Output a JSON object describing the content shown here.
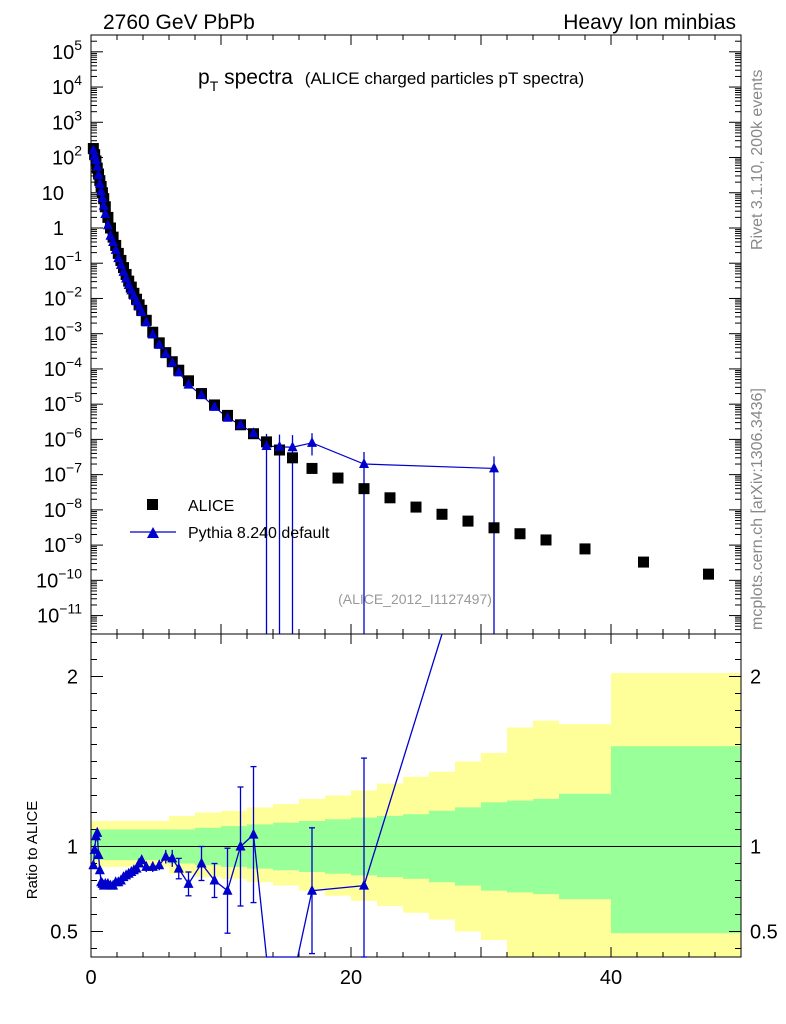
{
  "header": {
    "left": "2760 GeV PbPb",
    "right": "Heavy Ion minbias"
  },
  "plot_title": {
    "main": "p",
    "sub": "T",
    "rest": " spectra",
    "paren": "(ALICE charged particles pT spectra)"
  },
  "side_text": {
    "top": "Rivet 3.1.10,  200k events",
    "bottom": "mcplots.cern.ch [arXiv:1306.3436]"
  },
  "analysis_label": "(ALICE_2012_I1127497)",
  "legend": {
    "data": "ALICE",
    "mc": "Pythia 8.240 default"
  },
  "colors": {
    "data": "#000000",
    "mc": "#0000cc",
    "band_inner": "#99ff99",
    "band_outer": "#ffff99"
  },
  "chart_data": [
    {
      "type": "scatter",
      "yscale": "log",
      "xlim": [
        0,
        50
      ],
      "ylim": [
        3e-12,
        300000.0
      ],
      "y_ticks": [
        {
          "label": "10",
          "sup": "5"
        },
        {
          "label": "10",
          "sup": "4"
        },
        {
          "label": "10",
          "sup": "3"
        },
        {
          "label": "10",
          "sup": "2"
        },
        {
          "label": "10",
          "sup": ""
        },
        {
          "label": "1",
          "sup": ""
        },
        {
          "label": "10",
          "sup": "−1"
        },
        {
          "label": "10",
          "sup": "−2"
        },
        {
          "label": "10",
          "sup": "−3"
        },
        {
          "label": "10",
          "sup": "−4"
        },
        {
          "label": "10",
          "sup": "−5"
        },
        {
          "label": "10",
          "sup": "−6"
        },
        {
          "label": "10",
          "sup": "−7"
        },
        {
          "label": "10",
          "sup": "−8"
        },
        {
          "label": "10",
          "sup": "−9"
        },
        {
          "label": "10",
          "sup": "−10"
        },
        {
          "label": "10",
          "sup": "−11"
        }
      ],
      "series": [
        {
          "name": "ALICE",
          "marker": "square",
          "x": [
            0.18,
            0.28,
            0.38,
            0.48,
            0.58,
            0.68,
            0.78,
            0.88,
            0.98,
            1.1,
            1.3,
            1.5,
            1.7,
            1.9,
            2.1,
            2.3,
            2.5,
            2.7,
            2.9,
            3.1,
            3.3,
            3.5,
            3.7,
            3.9,
            4.25,
            4.75,
            5.25,
            5.75,
            6.25,
            6.75,
            7.5,
            8.5,
            9.5,
            10.5,
            11.5,
            12.5,
            13.5,
            14.5,
            15.5,
            17,
            19,
            21,
            23,
            25,
            27,
            29,
            31,
            33,
            35,
            38,
            42.5,
            47.5
          ],
          "y": [
            180,
            120,
            80,
            50,
            34,
            22,
            15,
            10,
            6.8,
            4,
            2,
            1,
            0.55,
            0.32,
            0.19,
            0.12,
            0.075,
            0.048,
            0.031,
            0.021,
            0.014,
            0.0095,
            0.0066,
            0.0046,
            0.0024,
            0.0011,
            0.00055,
            0.00029,
            0.00016,
            9.2e-05,
            4.6e-05,
            2e-05,
            9.5e-06,
            4.8e-06,
            2.6e-06,
            1.45e-06,
            8.5e-07,
            5e-07,
            3e-07,
            1.5e-07,
            8e-08,
            4e-08,
            2.2e-08,
            1.2e-08,
            7.5e-09,
            4.8e-09,
            3.1e-09,
            2.1e-09,
            1.4e-09,
            7.8e-10,
            3.3e-10,
            1.5e-10
          ]
        },
        {
          "name": "Pythia 8.240 default",
          "marker": "triangle",
          "x": [
            0.18,
            0.28,
            0.38,
            0.48,
            0.58,
            0.68,
            0.78,
            0.88,
            0.98,
            1.1,
            1.3,
            1.5,
            1.7,
            1.9,
            2.1,
            2.3,
            2.5,
            2.7,
            2.9,
            3.1,
            3.3,
            3.5,
            3.7,
            3.9,
            4.25,
            4.75,
            5.25,
            5.75,
            6.25,
            6.75,
            7.5,
            8.5,
            9.5,
            10.5,
            11.5,
            12.5,
            13.5,
            14.5,
            15.5,
            17,
            21,
            31
          ],
          "y": [
            160,
            110,
            85,
            55,
            32,
            18,
            11,
            7,
            4.3,
            2.5,
            1.2,
            0.6,
            0.4,
            0.24,
            0.14,
            0.09,
            0.057,
            0.037,
            0.024,
            0.017,
            0.012,
            0.0083,
            0.0059,
            0.0041,
            0.0021,
            0.00095,
            0.00048,
            0.00027,
            0.00015,
            8e-05,
            3.6e-05,
            1.8e-05,
            8.4e-06,
            4.1e-06,
            2.6e-06,
            1.5e-06,
            6.5e-07,
            6.2e-07,
            6e-07,
            8e-07,
            2e-07,
            1.5e-07
          ]
        }
      ]
    },
    {
      "type": "line",
      "ylabel": "Ratio to ALICE",
      "xlim": [
        0,
        50
      ],
      "ylim": [
        0.35,
        2.25
      ],
      "x_ticks": [
        0,
        20,
        40
      ],
      "y_ticks": [
        0.5,
        1,
        2
      ],
      "reference_line": 1,
      "band_edges": [
        0,
        6,
        8,
        10,
        12,
        14,
        16,
        18,
        20,
        22,
        24,
        26,
        28,
        30,
        32,
        34,
        36,
        40,
        50
      ],
      "band_inner": [
        [
          0.92,
          1.1
        ],
        [
          0.9,
          1.1
        ],
        [
          0.89,
          1.11
        ],
        [
          0.88,
          1.12
        ],
        [
          0.87,
          1.13
        ],
        [
          0.86,
          1.14
        ],
        [
          0.85,
          1.15
        ],
        [
          0.84,
          1.16
        ],
        [
          0.83,
          1.17
        ],
        [
          0.82,
          1.18
        ],
        [
          0.81,
          1.19
        ],
        [
          0.79,
          1.21
        ],
        [
          0.77,
          1.23
        ],
        [
          0.74,
          1.26
        ],
        [
          0.73,
          1.27
        ],
        [
          0.72,
          1.28
        ],
        [
          0.69,
          1.31
        ],
        [
          0.49,
          1.59
        ]
      ],
      "band_outer": [
        [
          0.88,
          1.15
        ],
        [
          0.84,
          1.18
        ],
        [
          0.82,
          1.2
        ],
        [
          0.81,
          1.21
        ],
        [
          0.79,
          1.23
        ],
        [
          0.77,
          1.25
        ],
        [
          0.74,
          1.28
        ],
        [
          0.71,
          1.3
        ],
        [
          0.68,
          1.33
        ],
        [
          0.65,
          1.37
        ],
        [
          0.61,
          1.41
        ],
        [
          0.57,
          1.44
        ],
        [
          0.5,
          1.5
        ],
        [
          0.45,
          1.55
        ],
        [
          0.35,
          1.7
        ],
        [
          0.35,
          1.74
        ],
        [
          0.35,
          1.72
        ],
        [
          0.35,
          2.02
        ]
      ],
      "series": [
        {
          "name": "Pythia 8.240 default",
          "x": [
            0.18,
            0.28,
            0.38,
            0.48,
            0.58,
            0.68,
            0.78,
            0.88,
            0.98,
            1.1,
            1.3,
            1.5,
            1.7,
            1.9,
            2.1,
            2.3,
            2.5,
            2.7,
            2.9,
            3.1,
            3.3,
            3.5,
            3.7,
            3.9,
            4.25,
            4.75,
            5.25,
            5.75,
            6.25,
            6.75,
            7.5,
            8.5,
            9.5,
            10.5,
            11.5,
            12.5,
            13.5,
            15.9,
            17,
            21,
            27
          ],
          "y": [
            0.89,
            0.98,
            1.06,
            1.08,
            0.95,
            0.86,
            0.79,
            0.78,
            0.77,
            0.78,
            0.78,
            0.77,
            0.77,
            0.79,
            0.79,
            0.8,
            0.82,
            0.83,
            0.84,
            0.85,
            0.86,
            0.87,
            0.9,
            0.92,
            0.88,
            0.88,
            0.89,
            0.94,
            0.93,
            0.87,
            0.78,
            0.9,
            0.8,
            0.74,
            1.0,
            1.07,
            0.35,
            0.35,
            0.74,
            0.77,
            2.25
          ],
          "err": [
            0.02,
            0.02,
            0.03,
            0.03,
            0.02,
            0.02,
            0.02,
            0.02,
            0.02,
            0.02,
            0.02,
            0.02,
            0.02,
            0.02,
            0.02,
            0.02,
            0.02,
            0.02,
            0.02,
            0.02,
            0.02,
            0.02,
            0.02,
            0.02,
            0.03,
            0.03,
            0.03,
            0.04,
            0.05,
            0.06,
            0.07,
            0.1,
            0.1,
            0.25,
            0.35,
            0.4,
            0.0,
            0.0,
            0.37,
            0.75,
            0.0
          ]
        }
      ]
    }
  ]
}
